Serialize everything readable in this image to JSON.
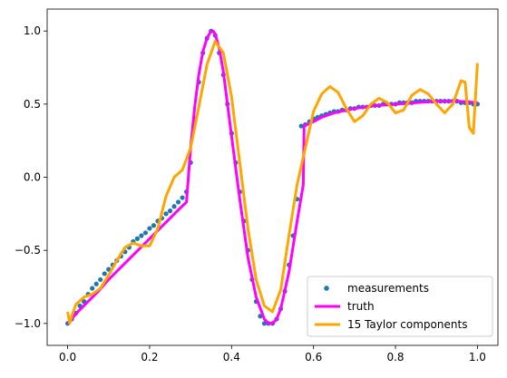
{
  "chart_data": {
    "type": "scatter",
    "title": "",
    "xlabel": "",
    "ylabel": "",
    "xlim": [
      -0.05,
      1.05
    ],
    "ylim": [
      -1.15,
      1.15
    ],
    "xticks": [
      0.0,
      0.2,
      0.4,
      0.6,
      0.8,
      1.0
    ],
    "xtick_labels": [
      "0.0",
      "0.2",
      "0.4",
      "0.6",
      "0.8",
      "1.0"
    ],
    "yticks": [
      -1.0,
      -0.5,
      0.0,
      0.5,
      1.0
    ],
    "ytick_labels": [
      "−1.0",
      "−0.5",
      "0.0",
      "0.5",
      "1.0"
    ],
    "grid": false,
    "legend_position": "lower-right",
    "series": [
      {
        "name": "measurements",
        "kind": "scatter",
        "color": "#1f77b4",
        "x": [
          0.0,
          0.01,
          0.02,
          0.03,
          0.04,
          0.05,
          0.06,
          0.07,
          0.08,
          0.09,
          0.1,
          0.11,
          0.12,
          0.13,
          0.14,
          0.15,
          0.16,
          0.17,
          0.18,
          0.19,
          0.2,
          0.21,
          0.22,
          0.23,
          0.24,
          0.25,
          0.26,
          0.27,
          0.28,
          0.29,
          0.3,
          0.31,
          0.32,
          0.33,
          0.34,
          0.35,
          0.36,
          0.37,
          0.38,
          0.39,
          0.4,
          0.41,
          0.42,
          0.43,
          0.44,
          0.45,
          0.46,
          0.47,
          0.48,
          0.49,
          0.5,
          0.51,
          0.52,
          0.53,
          0.54,
          0.55,
          0.56,
          0.57,
          0.58,
          0.59,
          0.6,
          0.61,
          0.62,
          0.63,
          0.64,
          0.65,
          0.66,
          0.67,
          0.68,
          0.69,
          0.7,
          0.71,
          0.72,
          0.73,
          0.74,
          0.75,
          0.76,
          0.77,
          0.78,
          0.79,
          0.8,
          0.81,
          0.82,
          0.83,
          0.84,
          0.85,
          0.86,
          0.87,
          0.88,
          0.89,
          0.9,
          0.91,
          0.92,
          0.93,
          0.94,
          0.95,
          0.96,
          0.97,
          0.98,
          0.99,
          1.0
        ],
        "y": [
          -1.0,
          -0.97,
          -0.93,
          -0.88,
          -0.85,
          -0.8,
          -0.76,
          -0.73,
          -0.7,
          -0.66,
          -0.63,
          -0.6,
          -0.57,
          -0.54,
          -0.51,
          -0.48,
          -0.44,
          -0.42,
          -0.4,
          -0.38,
          -0.35,
          -0.33,
          -0.3,
          -0.28,
          -0.25,
          -0.23,
          -0.2,
          -0.17,
          -0.14,
          -0.1,
          0.1,
          0.4,
          0.65,
          0.85,
          0.95,
          1.0,
          0.97,
          0.85,
          0.7,
          0.5,
          0.3,
          0.1,
          -0.1,
          -0.3,
          -0.5,
          -0.7,
          -0.85,
          -0.95,
          -1.0,
          -1.0,
          -1.0,
          -0.97,
          -0.9,
          -0.78,
          -0.6,
          -0.4,
          -0.15,
          0.35,
          0.36,
          0.38,
          0.4,
          0.41,
          0.42,
          0.43,
          0.44,
          0.45,
          0.45,
          0.46,
          0.46,
          0.47,
          0.47,
          0.48,
          0.48,
          0.48,
          0.49,
          0.49,
          0.49,
          0.5,
          0.5,
          0.5,
          0.5,
          0.51,
          0.51,
          0.51,
          0.51,
          0.52,
          0.52,
          0.52,
          0.52,
          0.52,
          0.52,
          0.52,
          0.52,
          0.52,
          0.52,
          0.52,
          0.51,
          0.51,
          0.51,
          0.5,
          0.5
        ]
      },
      {
        "name": "truth",
        "kind": "line",
        "color": "#ff00ff",
        "x": [
          0.0,
          0.025,
          0.05,
          0.075,
          0.1,
          0.125,
          0.15,
          0.175,
          0.2,
          0.225,
          0.25,
          0.275,
          0.29,
          0.3,
          0.31,
          0.32,
          0.33,
          0.34,
          0.35,
          0.355,
          0.36,
          0.37,
          0.38,
          0.39,
          0.4,
          0.42,
          0.44,
          0.46,
          0.48,
          0.49,
          0.5,
          0.51,
          0.52,
          0.54,
          0.56,
          0.575,
          0.577,
          0.6,
          0.62,
          0.65,
          0.7,
          0.75,
          0.8,
          0.85,
          0.9,
          0.95,
          1.0
        ],
        "y": [
          -1.0,
          -0.92,
          -0.85,
          -0.78,
          -0.7,
          -0.63,
          -0.56,
          -0.49,
          -0.42,
          -0.35,
          -0.28,
          -0.21,
          -0.17,
          0.2,
          0.48,
          0.7,
          0.86,
          0.95,
          1.0,
          1.0,
          0.98,
          0.88,
          0.72,
          0.5,
          0.28,
          -0.15,
          -0.55,
          -0.82,
          -0.97,
          -1.0,
          -1.0,
          -0.97,
          -0.9,
          -0.65,
          -0.3,
          -0.05,
          0.35,
          0.38,
          0.41,
          0.44,
          0.47,
          0.49,
          0.5,
          0.51,
          0.52,
          0.52,
          0.51
        ]
      },
      {
        "name": "15 Taylor components",
        "kind": "line",
        "color": "#ffa500",
        "x": [
          0.0,
          0.005,
          0.01,
          0.02,
          0.04,
          0.06,
          0.08,
          0.1,
          0.12,
          0.14,
          0.16,
          0.18,
          0.2,
          0.22,
          0.24,
          0.26,
          0.28,
          0.3,
          0.32,
          0.34,
          0.36,
          0.38,
          0.4,
          0.42,
          0.44,
          0.46,
          0.48,
          0.5,
          0.52,
          0.54,
          0.56,
          0.58,
          0.6,
          0.62,
          0.64,
          0.66,
          0.68,
          0.7,
          0.72,
          0.74,
          0.76,
          0.78,
          0.8,
          0.82,
          0.84,
          0.86,
          0.88,
          0.9,
          0.92,
          0.94,
          0.96,
          0.97,
          0.98,
          0.99,
          1.0
        ],
        "y": [
          -0.92,
          -1.0,
          -0.95,
          -0.87,
          -0.82,
          -0.8,
          -0.76,
          -0.67,
          -0.57,
          -0.48,
          -0.45,
          -0.47,
          -0.47,
          -0.35,
          -0.13,
          0.0,
          0.05,
          0.2,
          0.48,
          0.77,
          0.93,
          0.85,
          0.55,
          0.1,
          -0.35,
          -0.7,
          -0.88,
          -0.92,
          -0.77,
          -0.4,
          -0.05,
          0.2,
          0.45,
          0.57,
          0.62,
          0.58,
          0.47,
          0.38,
          0.42,
          0.5,
          0.54,
          0.51,
          0.44,
          0.46,
          0.56,
          0.6,
          0.57,
          0.5,
          0.44,
          0.5,
          0.66,
          0.65,
          0.34,
          0.3,
          0.78
        ]
      }
    ]
  }
}
